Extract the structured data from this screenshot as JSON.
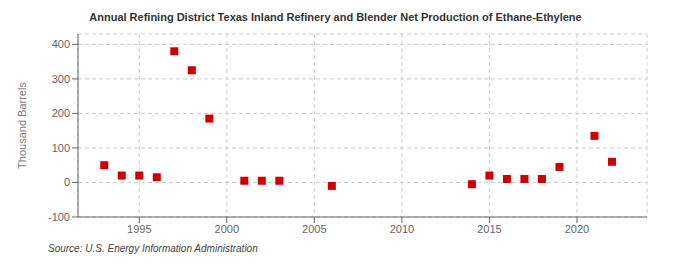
{
  "chart_data": {
    "type": "scatter",
    "title": "Annual Refining District Texas Inland Refinery and Blender Net Production of Ethane-Ethylene",
    "ylabel": "Thousand Barrels",
    "annotation": "Source: U.S. Energy Information Administration",
    "x": [
      1993,
      1994,
      1995,
      1996,
      1997,
      1998,
      1999,
      2001,
      2002,
      2003,
      2006,
      2014,
      2015,
      2016,
      2017,
      2018,
      2019,
      2021,
      2022
    ],
    "values": [
      50,
      20,
      20,
      15,
      380,
      325,
      185,
      5,
      5,
      5,
      -10,
      -5,
      20,
      10,
      10,
      10,
      45,
      135,
      60
    ],
    "color": "#cc0000",
    "marker": "square",
    "xlim": [
      1991.5,
      2024
    ],
    "xticks": [
      1995,
      2000,
      2005,
      2010,
      2015,
      2020
    ],
    "ylim": [
      -100,
      430
    ],
    "yticks": [
      -100,
      0,
      100,
      200,
      300,
      400
    ],
    "grid": true
  }
}
